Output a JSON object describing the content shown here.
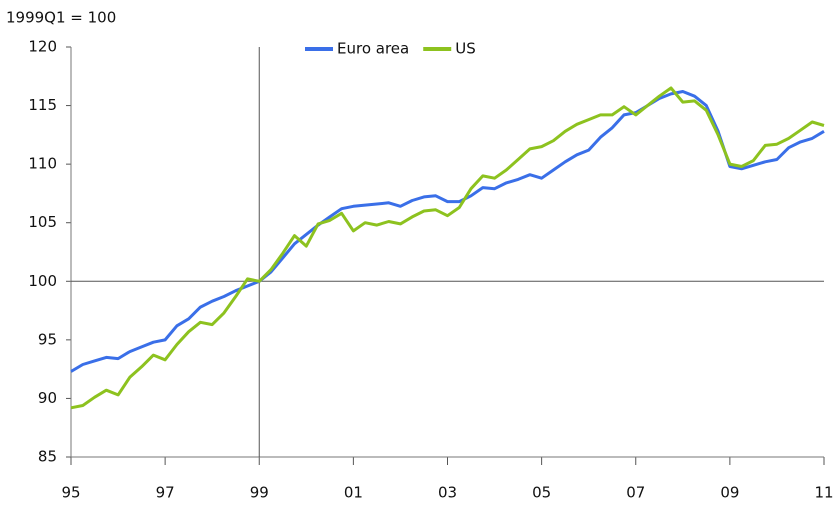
{
  "chart_data": {
    "type": "line",
    "y_label": "1999Q1 = 100",
    "x": [
      1995,
      1995.25,
      1995.5,
      1995.75,
      1996,
      1996.25,
      1996.5,
      1996.75,
      1997,
      1997.25,
      1997.5,
      1997.75,
      1998,
      1998.25,
      1998.5,
      1998.75,
      1999,
      1999.25,
      1999.5,
      1999.75,
      2000,
      2000.25,
      2000.5,
      2000.75,
      2001,
      2001.25,
      2001.5,
      2001.75,
      2002,
      2002.25,
      2002.5,
      2002.75,
      2003,
      2003.25,
      2003.5,
      2003.75,
      2004,
      2004.25,
      2004.5,
      2004.75,
      2005,
      2005.25,
      2005.5,
      2005.75,
      2006,
      2006.25,
      2006.5,
      2006.75,
      2007,
      2007.25,
      2007.5,
      2007.75,
      2008,
      2008.25,
      2008.5,
      2008.75,
      2009,
      2009.25,
      2009.5,
      2009.75,
      2010,
      2010.25,
      2010.5,
      2010.75,
      2011
    ],
    "series": [
      {
        "name": "Euro area",
        "color": "#3a6fe8",
        "values": [
          92.3,
          92.9,
          93.2,
          93.5,
          93.4,
          94.0,
          94.4,
          94.8,
          95.0,
          96.2,
          96.8,
          97.8,
          98.3,
          98.7,
          99.2,
          99.6,
          100,
          100.8,
          102.0,
          103.2,
          104.0,
          104.8,
          105.5,
          106.2,
          106.4,
          106.5,
          106.6,
          106.7,
          106.4,
          106.9,
          107.2,
          107.3,
          106.8,
          106.8,
          107.3,
          108.0,
          107.9,
          108.4,
          108.7,
          109.1,
          108.8,
          109.5,
          110.2,
          110.8,
          111.2,
          112.3,
          113.1,
          114.2,
          114.4,
          115.0,
          115.6,
          116.0,
          116.2,
          115.8,
          115.0,
          112.8,
          109.8,
          109.6,
          109.9,
          110.2,
          110.4,
          111.4,
          111.9,
          112.2,
          112.8
        ]
      },
      {
        "name": "US",
        "color": "#8dc21f",
        "values": [
          89.2,
          89.4,
          90.1,
          90.7,
          90.3,
          91.8,
          92.7,
          93.7,
          93.3,
          94.6,
          95.7,
          96.5,
          96.3,
          97.3,
          98.7,
          100.2,
          100,
          101.0,
          102.4,
          103.9,
          103.0,
          104.9,
          105.2,
          105.8,
          104.3,
          105.0,
          104.8,
          105.1,
          104.9,
          105.5,
          106.0,
          106.1,
          105.6,
          106.3,
          107.9,
          109.0,
          108.8,
          109.5,
          110.4,
          111.3,
          111.5,
          112.0,
          112.8,
          113.4,
          113.8,
          114.2,
          114.2,
          114.9,
          114.2,
          115.0,
          115.8,
          116.5,
          115.3,
          115.4,
          114.6,
          112.5,
          110.0,
          109.8,
          110.3,
          111.6,
          111.7,
          112.2,
          112.9,
          113.6,
          113.3
        ]
      }
    ],
    "xlim": [
      1995,
      2011
    ],
    "xticks": [
      {
        "value": 1995,
        "label": "95"
      },
      {
        "value": 1997,
        "label": "97"
      },
      {
        "value": 1999,
        "label": "99"
      },
      {
        "value": 2001,
        "label": "01"
      },
      {
        "value": 2003,
        "label": "03"
      },
      {
        "value": 2005,
        "label": "05"
      },
      {
        "value": 2007,
        "label": "07"
      },
      {
        "value": 2009,
        "label": "09"
      },
      {
        "value": 2011,
        "label": "11"
      }
    ],
    "ylim": [
      85,
      120
    ],
    "yticks": [
      85,
      90,
      95,
      100,
      105,
      110,
      115,
      120
    ],
    "grid": true,
    "vline": 1999,
    "hline": 100,
    "legend": "upper center"
  }
}
